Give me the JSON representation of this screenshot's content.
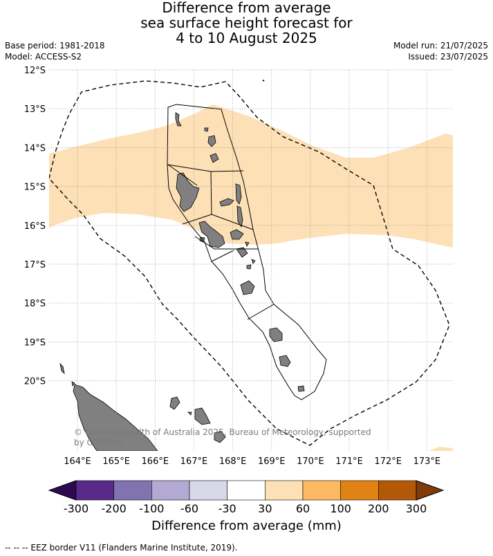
{
  "title": {
    "line1": "Difference from average",
    "line2": "sea surface height forecast for",
    "line3": "4 to 10 August 2025"
  },
  "meta": {
    "base_period": "Base period: 1981-2018",
    "model": "Model: ACCESS-S2",
    "model_run": "Model run: 21/07/2025",
    "issued": "Issued: 23/07/2025"
  },
  "map": {
    "lat_labels": [
      "12°S",
      "13°S",
      "14°S",
      "15°S",
      "16°S",
      "17°S",
      "18°S",
      "19°S",
      "20°S"
    ],
    "lon_labels": [
      "164°E",
      "165°E",
      "166°E",
      "167°E",
      "168°E",
      "169°E",
      "170°E",
      "171°E",
      "172°E",
      "173°E"
    ],
    "copyright": "© Commonwealth of Australia 2025, Bureau of Meteorology, supported by COSPPac",
    "colors": {
      "anomaly_30_60": "#fde0b6",
      "land": "#808080",
      "gridline": "#8a8a8a"
    }
  },
  "colorbar": {
    "colors": [
      "#2d0a4f",
      "#5a2a8a",
      "#8172b0",
      "#b2aad2",
      "#d8d8eb",
      "#ffffff",
      "#fde0b6",
      "#fdb863",
      "#e08214",
      "#b35806",
      "#7f3b08"
    ],
    "ticks": [
      "-300",
      "-200",
      "-100",
      "-60",
      "-30",
      "30",
      "60",
      "100",
      "200",
      "300"
    ],
    "label": "Difference from average (mm)"
  },
  "footnote": "--  --  -- EEZ border V11 (Flanders Marine Institute, 2019)."
}
